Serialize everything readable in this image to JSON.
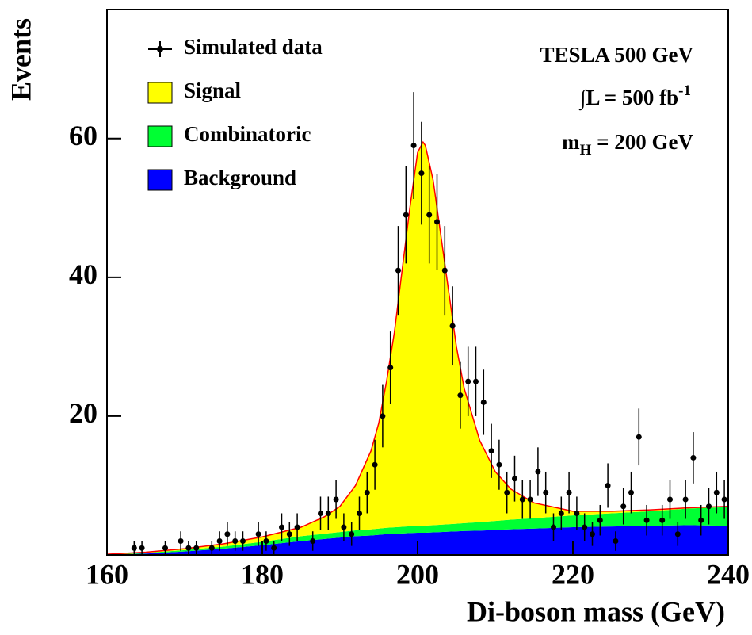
{
  "chart_data": {
    "type": "stacked_area",
    "ylabel": "Events",
    "xlabel": "Di-boson mass (GeV)",
    "annotations": [
      "TESLA 500 GeV",
      "∫L = 500 fb",
      "-1",
      "m",
      "H",
      " = 200 GeV"
    ],
    "xlim": [
      160,
      240
    ],
    "ylim": [
      0,
      78.6
    ],
    "xticks": [
      160,
      180,
      200,
      220,
      240
    ],
    "yticks": [
      20,
      40,
      60
    ],
    "fit_color": "#ff0000",
    "x": [
      160,
      165,
      170,
      175,
      180,
      185,
      188,
      190,
      192,
      194,
      195,
      196,
      197,
      198,
      199,
      200,
      200.7,
      201,
      202,
      203,
      204,
      205,
      206,
      208,
      210,
      212,
      215,
      220,
      225,
      230,
      235,
      240
    ],
    "series": [
      {
        "name": "Background",
        "color": "#0000ff",
        "values": [
          0,
          0.2,
          0.5,
          0.9,
          1.4,
          2,
          2.3,
          2.5,
          2.7,
          2.8,
          2.9,
          3,
          3.05,
          3.1,
          3.15,
          3.2,
          3.2,
          3.2,
          3.25,
          3.3,
          3.35,
          3.4,
          3.45,
          3.5,
          3.6,
          3.7,
          3.8,
          4,
          4.1,
          4.2,
          4.3,
          4.2
        ]
      },
      {
        "name": "Combinatoric",
        "color": "#00ff33",
        "values": [
          0,
          0.1,
          0.2,
          0.3,
          0.5,
          0.7,
          0.76,
          0.8,
          0.84,
          0.88,
          0.9,
          0.92,
          0.94,
          0.96,
          0.98,
          1,
          1,
          1.02,
          1.04,
          1.06,
          1.08,
          1.1,
          1.14,
          1.22,
          1.3,
          1.38,
          1.5,
          1.7,
          1.9,
          2.1,
          2.4,
          2.7
        ]
      },
      {
        "name": "Signal",
        "color": "#ffff00",
        "values": [
          0.1,
          0.1,
          0.2,
          0.4,
          0.7,
          1.3,
          2.44,
          3.7,
          6.46,
          11.32,
          15.2,
          21.08,
          28.01,
          36.94,
          45.87,
          53.8,
          55.3,
          54.78,
          49.71,
          41.64,
          33.57,
          25.5,
          19.41,
          11.78,
          7.1,
          4.42,
          2.2,
          0.6,
          0.3,
          0.2,
          0.1,
          0.1
        ]
      }
    ],
    "points": {
      "name": "Simulated data",
      "x": [
        163.5,
        164.5,
        167.5,
        169.5,
        170.5,
        171.5,
        173.5,
        174.5,
        175.5,
        176.5,
        177.5,
        179.5,
        180.5,
        181.5,
        182.5,
        183.5,
        184.5,
        186.5,
        187.5,
        188.5,
        189.5,
        190.5,
        191.5,
        192.5,
        193.5,
        194.5,
        195.5,
        196.5,
        197.5,
        198.5,
        199.5,
        200.5,
        201.5,
        202.5,
        203.5,
        204.5,
        205.5,
        206.5,
        207.5,
        208.5,
        209.5,
        210.5,
        211.5,
        212.5,
        213.5,
        214.5,
        215.5,
        216.5,
        217.5,
        218.5,
        219.5,
        220.5,
        221.5,
        222.5,
        223.5,
        224.5,
        225.5,
        226.5,
        227.5,
        228.5,
        229.5,
        231.5,
        232.5,
        233.5,
        234.5,
        235.5,
        236.5,
        237.5,
        238.5,
        239.5
      ],
      "values": [
        1,
        1,
        1,
        2,
        1,
        1,
        1,
        2,
        3,
        2,
        2,
        3,
        2,
        1,
        4,
        3,
        4,
        2,
        6,
        6,
        8,
        4,
        3,
        6,
        9,
        13,
        20,
        27,
        41,
        49,
        59,
        55,
        49,
        48,
        41,
        33,
        23,
        25,
        25,
        22,
        15,
        13,
        9,
        11,
        8,
        8,
        12,
        9,
        4,
        6,
        9,
        6,
        4,
        3,
        5,
        10,
        2,
        7,
        9,
        17,
        5,
        5,
        8,
        3,
        8,
        14,
        5,
        7,
        9,
        8
      ],
      "errors": [
        1,
        1,
        1,
        1.4,
        1,
        1,
        1,
        1.4,
        1.7,
        1.4,
        1.4,
        1.7,
        1.4,
        1,
        2,
        1.7,
        2,
        1.4,
        2.4,
        2.4,
        2.8,
        2,
        1.7,
        2.4,
        3,
        3.6,
        4.5,
        5.2,
        6.4,
        7,
        7.7,
        7.4,
        7,
        6.9,
        6.4,
        5.7,
        4.8,
        5,
        5,
        4.7,
        3.9,
        3.6,
        3,
        3.3,
        2.8,
        2.8,
        3.5,
        3,
        2,
        2.4,
        3,
        2.4,
        2,
        1.7,
        2.2,
        3.2,
        1.4,
        2.6,
        3,
        4.1,
        2.2,
        2.2,
        2.8,
        1.7,
        2.8,
        3.7,
        2.2,
        2.6,
        3,
        2.8
      ]
    }
  }
}
